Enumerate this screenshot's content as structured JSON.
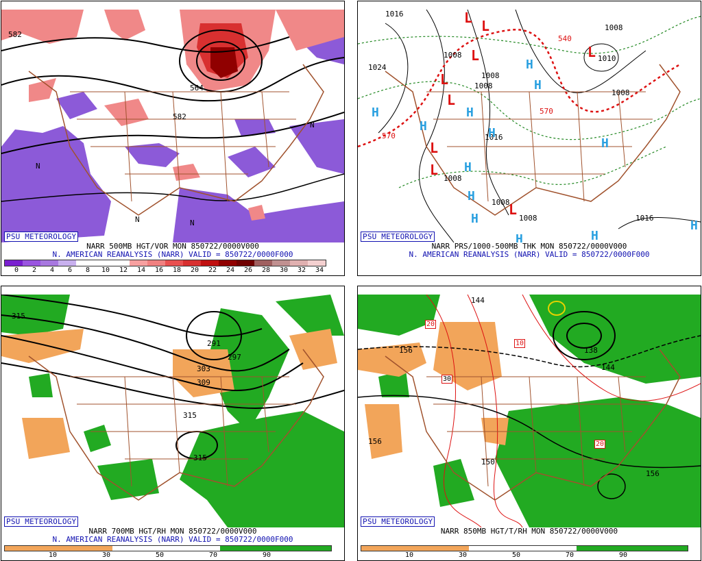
{
  "panels": {
    "tl": {
      "psu": "PSU METEOROLOGY",
      "title1": "NARR 500MB HGT/VOR MON 850722/0000V000",
      "title2": "N. AMERICAN REANALYSIS (NARR) VALID = 850722/0000F000",
      "contour_labels": [
        "582",
        "582",
        "564",
        "N",
        "N",
        "N",
        "N"
      ],
      "colorbar_ticks": [
        "0",
        "2",
        "4",
        "6",
        "8",
        "10",
        "12",
        "14",
        "16",
        "18",
        "20",
        "22",
        "24",
        "26",
        "28",
        "30",
        "32",
        "34"
      ],
      "colorbar_colors": [
        "#7a20d0",
        "#9a55e0",
        "#a878e0",
        "#c8b0ee",
        "#ffffff",
        "#ffffff",
        "#ffffff",
        "#f7a0a0",
        "#f08080",
        "#e85050",
        "#d83030",
        "#c01010",
        "#900000",
        "#700000",
        "#a06060",
        "#c09090",
        "#e0b0b0",
        "#f4d0d0"
      ]
    },
    "tr": {
      "psu": "PSU METEOROLOGY",
      "title1": "NARR PRS/1000-500MB THK MON 850722/0000V000",
      "title2": "N. AMERICAN REANALYSIS (NARR) VALID = 850722/0000F000",
      "isobar_labels": [
        "1016",
        "1024",
        "1008",
        "1008",
        "1016",
        "1008",
        "1008",
        "1008",
        "1016",
        "1008",
        "1010",
        "1008",
        "1008",
        "570",
        "570",
        "540"
      ],
      "high_symbol": "H",
      "low_symbol": "L"
    },
    "bl": {
      "psu": "PSU METEOROLOGY",
      "title1": "NARR 700MB HGT/RH MON 850722/0000V000",
      "title2": "N. AMERICAN REANALYSIS (NARR) VALID = 850722/0000F000",
      "contour_labels": [
        "315",
        "291",
        "297",
        "303",
        "309",
        "315",
        "315"
      ],
      "colorbar_ticks": [
        "10",
        "30",
        "50",
        "70",
        "90"
      ]
    },
    "br": {
      "psu": "PSU METEOROLOGY",
      "title1": "NARR 850MB HGT/T/RH MON 850722/0000V000",
      "contour_labels": [
        "144",
        "156",
        "156",
        "150",
        "138",
        "144",
        "156"
      ],
      "temp_labels": [
        "20",
        "10",
        "30",
        "20"
      ],
      "colorbar_ticks": [
        "10",
        "30",
        "50",
        "70",
        "90"
      ]
    }
  },
  "colors": {
    "map_lines": "#a0522d",
    "psu_blue": "#1010b0",
    "rh_green": "#22aa22",
    "rh_orange": "#f2a55a",
    "high_blue": "#2aa0e0",
    "low_red": "#dd1111"
  }
}
